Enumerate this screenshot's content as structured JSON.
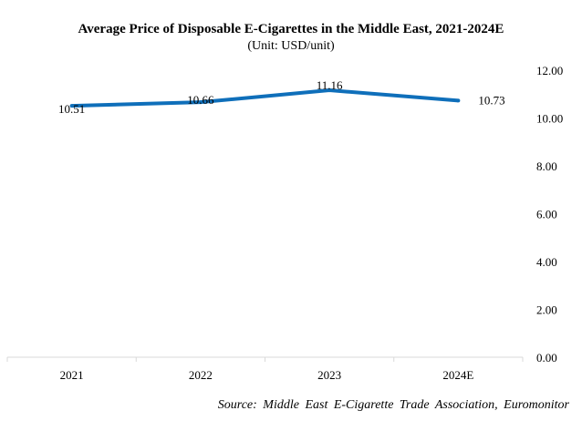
{
  "chart_data": {
    "type": "line",
    "title": "Average Price of Disposable E-Cigarettes in the Middle East, 2021-2024E",
    "subtitle": "(Unit: USD/unit)",
    "xlabel": "",
    "ylabel": "",
    "categories": [
      "2021",
      "2022",
      "2023",
      "2024E"
    ],
    "series": [
      {
        "name": "Average Price",
        "values": [
          10.51,
          10.66,
          11.16,
          10.73
        ],
        "color": "#0f6fba"
      }
    ],
    "data_labels": [
      "10.51",
      "10.66",
      "11.16",
      "10.73"
    ],
    "ylim": [
      0,
      12
    ],
    "yticks": [
      0,
      2,
      4,
      6,
      8,
      10,
      12
    ],
    "ytick_labels": [
      "0.00",
      "2.00",
      "4.00",
      "6.00",
      "8.00",
      "10.00",
      "12.00"
    ],
    "y_axis_side": "right",
    "grid": false,
    "legend": "none",
    "source": "Source: Middle East E-Cigarette Trade Association, Euromonitor"
  }
}
